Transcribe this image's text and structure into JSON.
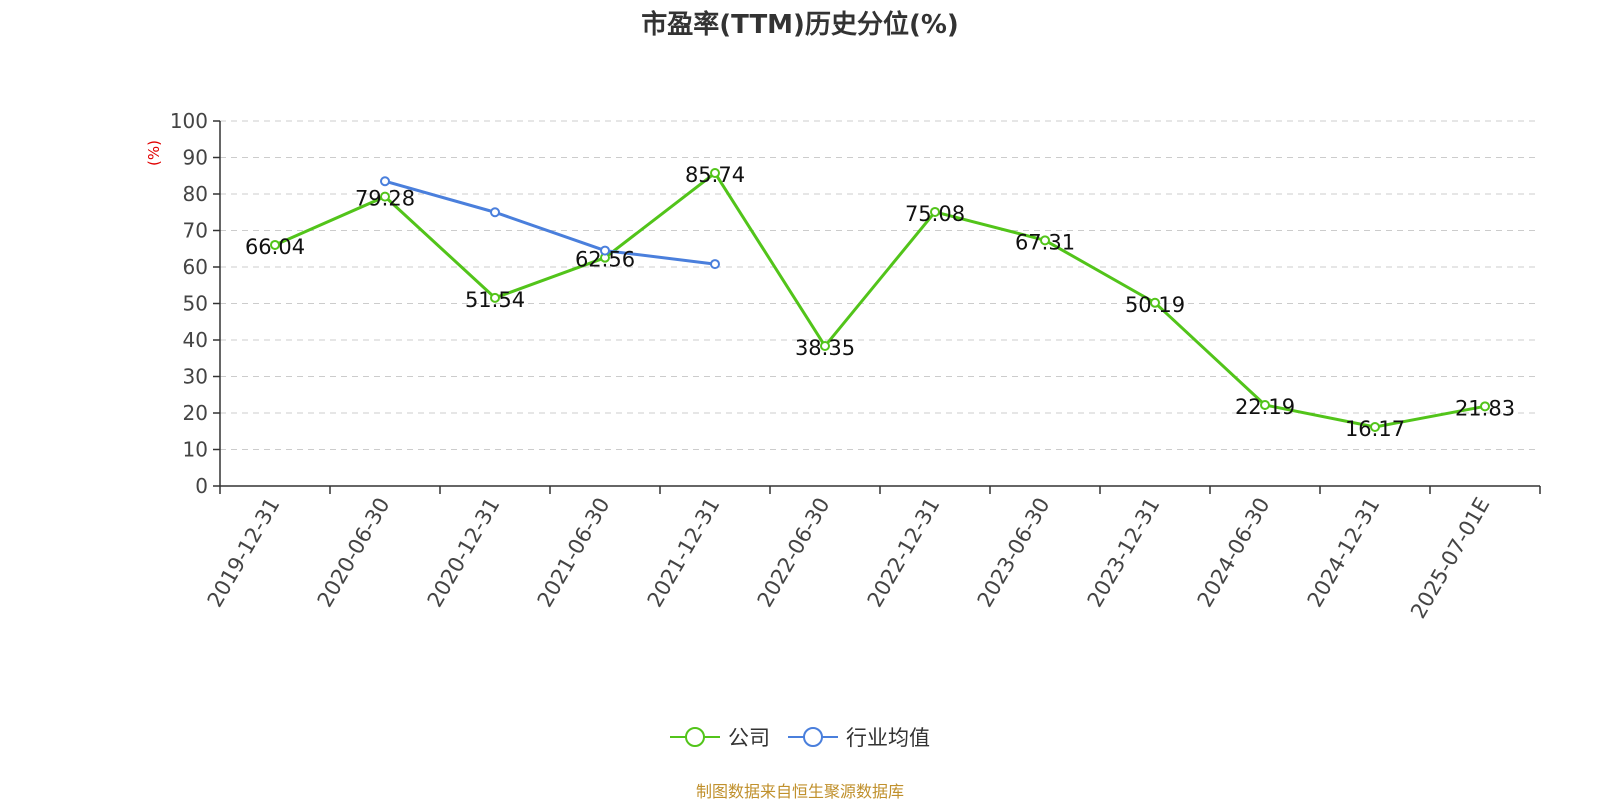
{
  "chart_data": {
    "type": "line",
    "title": "市盈率(TTM)历史分位(%)",
    "ylabel": "(%)",
    "xlabel": "",
    "ylim": [
      0,
      100
    ],
    "yticks": [
      0,
      10,
      20,
      30,
      40,
      50,
      60,
      70,
      80,
      90,
      100
    ],
    "grid": true,
    "legend_position": "bottom",
    "categories": [
      "2019-12-31",
      "2020-06-30",
      "2020-12-31",
      "2021-06-30",
      "2021-12-31",
      "2022-06-30",
      "2022-12-31",
      "2023-06-30",
      "2023-12-31",
      "2024-06-30",
      "2024-12-31",
      "2025-07-01E"
    ],
    "series": [
      {
        "name": "公司",
        "color": "#52c41a",
        "values": [
          66.04,
          79.28,
          51.54,
          62.56,
          85.74,
          38.35,
          75.08,
          67.31,
          50.19,
          22.19,
          16.17,
          21.83
        ],
        "labels": [
          "66.04",
          "79.28",
          "51.54",
          "62.56",
          "85.74",
          "38.35",
          "75.08",
          "67.31",
          "50.19",
          "22.19",
          "16.17",
          "21.83"
        ]
      },
      {
        "name": "行业均值",
        "color": "#4a7fdc",
        "values": [
          null,
          83.5,
          75.0,
          64.5,
          60.8,
          null,
          null,
          null,
          null,
          null,
          null,
          null
        ]
      }
    ]
  },
  "source_note": "制图数据来自恒生聚源数据库"
}
